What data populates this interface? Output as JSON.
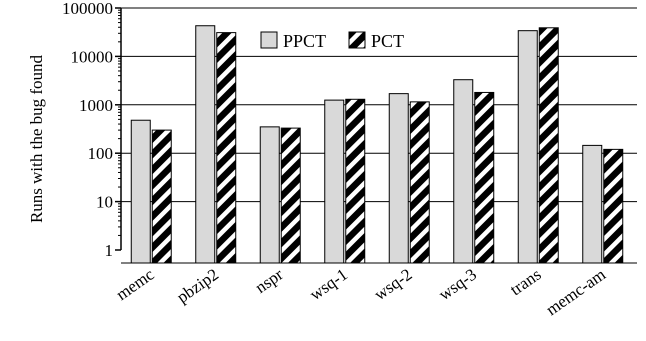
{
  "chart_data": {
    "type": "bar",
    "ylabel": "Runs with the bug found",
    "xlabel": "",
    "yscale": "log",
    "ylim": [
      1,
      100000
    ],
    "yticks": [
      "1",
      "10",
      "100",
      "1000",
      "10000",
      "100000"
    ],
    "categories": [
      "memc",
      "pbzip2",
      "nspr",
      "wsq-1",
      "wsq-2",
      "wsq-3",
      "trans",
      "memc-am"
    ],
    "series": [
      {
        "name": "PPCT",
        "values": [
          480,
          43000,
          350,
          1250,
          1700,
          3300,
          34000,
          145
        ]
      },
      {
        "name": "PCT",
        "values": [
          300,
          31000,
          330,
          1300,
          1150,
          1800,
          39000,
          120
        ]
      }
    ],
    "grid": true,
    "legend_position": "top-center",
    "colors": {
      "PPCT": "#d9d9d9",
      "PCT": "hatched-black-white"
    }
  }
}
